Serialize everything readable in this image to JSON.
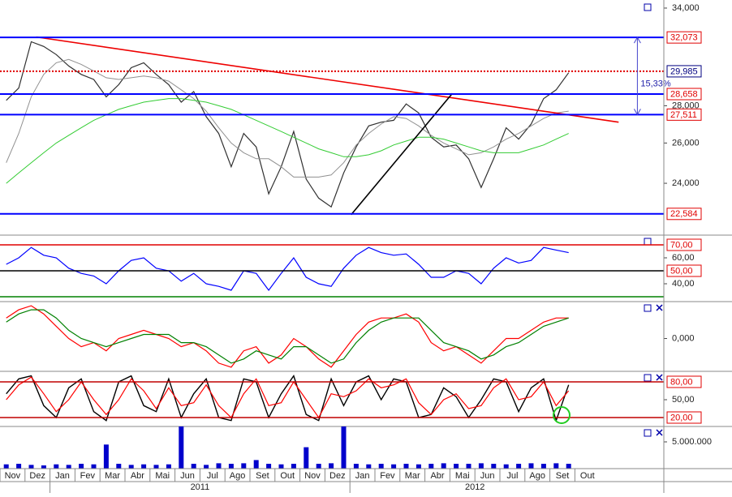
{
  "x_axis": {
    "categories": [
      "Nov",
      null,
      "Dez",
      null,
      "Jan",
      null,
      "Fev",
      null,
      "Mar",
      null,
      "Abr",
      null,
      "Mai",
      null,
      "Jun",
      null,
      "Jul",
      null,
      "Ago",
      null,
      "Set",
      null,
      "Out",
      null,
      "Nov",
      null,
      "Dez",
      null,
      "Jan",
      null,
      "Fev",
      null,
      "Mar",
      null,
      "Abr",
      null,
      "Mai",
      null,
      "Jun",
      null,
      "Jul",
      null,
      "Ago",
      null,
      "Set",
      null,
      "Out",
      null
    ],
    "years": [
      "2011",
      "2012"
    ]
  },
  "chart_data": [
    {
      "type": "line",
      "log": true,
      "ylim": [
        21650,
        34550
      ],
      "yticks": [
        {
          "value": 34000,
          "label": "34,000"
        },
        {
          "value": 28000,
          "label": "28,000"
        },
        {
          "value": 26000,
          "label": "26,000"
        },
        {
          "value": 24000,
          "label": "24,000"
        }
      ],
      "series": [
        {
          "color": "#303030",
          "width": 1.2,
          "values": [
            28300,
            29000,
            31800,
            31500,
            31000,
            30300,
            29800,
            29500,
            28500,
            29200,
            30200,
            30500,
            29800,
            29200,
            28200,
            28800,
            27400,
            26500,
            24800,
            26500,
            25800,
            23500,
            24800,
            26600,
            24200,
            23300,
            22900,
            24500,
            25800,
            26900,
            27100,
            27200,
            28100,
            27600,
            26300,
            25800,
            25900,
            25200,
            23800,
            25200,
            26800,
            26200,
            27000,
            28400,
            28900,
            29900,
            null,
            null
          ]
        },
        {
          "color": "#909090",
          "width": 1,
          "values": [
            25000,
            26500,
            28500,
            29800,
            30500,
            30700,
            30400,
            30000,
            29600,
            29500,
            29600,
            29700,
            29600,
            29400,
            28900,
            28400,
            27700,
            26800,
            26000,
            25500,
            25200,
            25200,
            24800,
            24300,
            24300,
            24300,
            24400,
            25000,
            25900,
            26500,
            27000,
            27400,
            27300,
            26900,
            26400,
            26000,
            25700,
            25400,
            25500,
            25800,
            26200,
            26500,
            26900,
            27300,
            27600,
            27700,
            null,
            null
          ]
        },
        {
          "color": "#33cc33",
          "width": 1,
          "values": [
            24000,
            24500,
            25000,
            25500,
            26000,
            26400,
            26800,
            27200,
            27500,
            27800,
            28000,
            28200,
            28300,
            28400,
            28400,
            28300,
            28200,
            28000,
            27800,
            27500,
            27200,
            26900,
            26600,
            26300,
            26000,
            25700,
            25500,
            25300,
            25300,
            25400,
            25600,
            25900,
            26100,
            26300,
            26300,
            26200,
            26000,
            25800,
            25600,
            25500,
            25500,
            25500,
            25700,
            25900,
            26200,
            26500,
            null,
            null
          ]
        }
      ],
      "levels": [
        {
          "value": 32073,
          "label": "32,073",
          "color": "#0000ff",
          "label_color": "#e00000"
        },
        {
          "value": 29985,
          "label": "29,985",
          "color": "#e00000",
          "label_color": "#000080",
          "dash": true
        },
        {
          "value": 28658,
          "label": "28,658",
          "color": "#0000ff",
          "label_color": "#e00000"
        },
        {
          "value": 27511,
          "label": "27,511",
          "color": "#0000ff",
          "label_color": "#e00000"
        },
        {
          "value": 22584,
          "label": "22,584",
          "color": "#0000ff",
          "label_color": "#e00000"
        }
      ],
      "trendlines": [
        {
          "color": "#ee0000",
          "x": [
            2.4,
            49
          ],
          "y": [
            32100,
            27100
          ]
        },
        {
          "color": "#000000",
          "x": [
            27.6,
            35.7
          ],
          "y": [
            22550,
            28700
          ]
        }
      ],
      "range_annotation": {
        "text": "15,33%",
        "x": 50.5,
        "from": 27511,
        "to": 32073
      }
    },
    {
      "type": "line",
      "ylim": [
        26.25,
        77.5
      ],
      "yticks": [
        {
          "value": 60,
          "label": "60,00"
        },
        {
          "value": 40,
          "label": "40,00"
        }
      ],
      "series": [
        {
          "color": "#0000ff",
          "width": 1.2,
          "values": [
            55,
            60,
            68,
            62,
            60,
            52,
            48,
            46,
            40,
            50,
            58,
            60,
            52,
            50,
            42,
            48,
            40,
            38,
            35,
            50,
            48,
            35,
            48,
            60,
            45,
            40,
            38,
            52,
            62,
            68,
            64,
            62,
            63,
            55,
            45,
            45,
            50,
            48,
            40,
            52,
            60,
            56,
            58,
            68,
            66,
            64,
            null,
            null
          ]
        }
      ],
      "levels": [
        {
          "value": 70,
          "label": "70,00",
          "color": "#e00000",
          "label_color": "#e00000"
        },
        {
          "value": 50,
          "label": "50,00",
          "color": "#000000",
          "label_color": "#e00000"
        },
        {
          "value": 30,
          "color": "#008000"
        }
      ]
    },
    {
      "type": "line",
      "ylim": [
        -0.8,
        0.9
      ],
      "yticks": [
        {
          "value": 0,
          "label": "0,000"
        }
      ],
      "series": [
        {
          "color": "#ff0000",
          "width": 1.2,
          "values": [
            0.5,
            0.7,
            0.8,
            0.6,
            0.3,
            0.0,
            -0.2,
            -0.1,
            -0.3,
            0.0,
            0.1,
            0.2,
            0.1,
            0.0,
            -0.2,
            -0.1,
            -0.3,
            -0.6,
            -0.7,
            -0.3,
            -0.2,
            -0.6,
            -0.4,
            0.0,
            -0.2,
            -0.5,
            -0.7,
            -0.3,
            0.1,
            0.4,
            0.5,
            0.5,
            0.6,
            0.4,
            -0.1,
            -0.3,
            -0.2,
            -0.4,
            -0.6,
            -0.3,
            0.0,
            0.0,
            0.2,
            0.4,
            0.5,
            0.5,
            null,
            null
          ]
        },
        {
          "color": "#008000",
          "width": 1.2,
          "values": [
            0.4,
            0.6,
            0.7,
            0.7,
            0.5,
            0.2,
            0.0,
            -0.1,
            -0.2,
            -0.1,
            0.0,
            0.1,
            0.1,
            0.1,
            -0.1,
            -0.1,
            -0.2,
            -0.4,
            -0.6,
            -0.5,
            -0.3,
            -0.4,
            -0.5,
            -0.2,
            -0.2,
            -0.4,
            -0.6,
            -0.5,
            -0.1,
            0.2,
            0.4,
            0.5,
            0.5,
            0.5,
            0.2,
            -0.1,
            -0.2,
            -0.3,
            -0.5,
            -0.4,
            -0.2,
            -0.1,
            0.1,
            0.3,
            0.4,
            0.5,
            null,
            null
          ]
        }
      ]
    },
    {
      "type": "line",
      "ylim": [
        5,
        97.7
      ],
      "yticks": [
        {
          "value": 50,
          "label": "50,00"
        }
      ],
      "series": [
        {
          "color": "#000000",
          "width": 1.4,
          "values": [
            60,
            85,
            90,
            40,
            20,
            70,
            85,
            30,
            15,
            80,
            90,
            40,
            30,
            85,
            20,
            60,
            85,
            20,
            15,
            85,
            80,
            20,
            60,
            90,
            25,
            15,
            85,
            40,
            80,
            90,
            50,
            85,
            80,
            20,
            25,
            70,
            55,
            20,
            50,
            85,
            80,
            30,
            70,
            85,
            15,
            75,
            null,
            null
          ]
        },
        {
          "color": "#ff0000",
          "width": 1.2,
          "values": [
            50,
            75,
            88,
            60,
            30,
            50,
            80,
            50,
            25,
            50,
            85,
            65,
            35,
            70,
            40,
            45,
            75,
            40,
            20,
            60,
            85,
            40,
            45,
            80,
            50,
            20,
            60,
            55,
            65,
            85,
            70,
            75,
            85,
            45,
            25,
            50,
            60,
            35,
            40,
            70,
            85,
            50,
            55,
            80,
            40,
            65,
            null,
            null
          ]
        }
      ],
      "levels": [
        {
          "value": 80,
          "label": "80,00",
          "color": "#c00000",
          "label_color": "#e00000"
        },
        {
          "value": 20,
          "label": "20,00",
          "color": "#c00000",
          "label_color": "#e00000"
        }
      ]
    },
    {
      "type": "bar",
      "ylim": [
        0,
        7880000
      ],
      "yticks": [
        {
          "value": 5000000,
          "label": "5.000.000"
        }
      ],
      "series": [
        {
          "color": "#0000cc",
          "values": [
            800000,
            900000,
            700000,
            600000,
            800000,
            700000,
            900000,
            800000,
            4500000,
            900000,
            700000,
            800000,
            700000,
            800000,
            8000000,
            900000,
            700000,
            1000000,
            900000,
            1000000,
            1600000,
            900000,
            800000,
            900000,
            4000000,
            900000,
            1000000,
            8000000,
            900000,
            800000,
            900000,
            800000,
            900000,
            800000,
            900000,
            1000000,
            900000,
            900000,
            1000000,
            900000,
            800000,
            900000,
            1000000,
            900000,
            1000000,
            900000,
            null,
            null
          ]
        }
      ]
    }
  ]
}
